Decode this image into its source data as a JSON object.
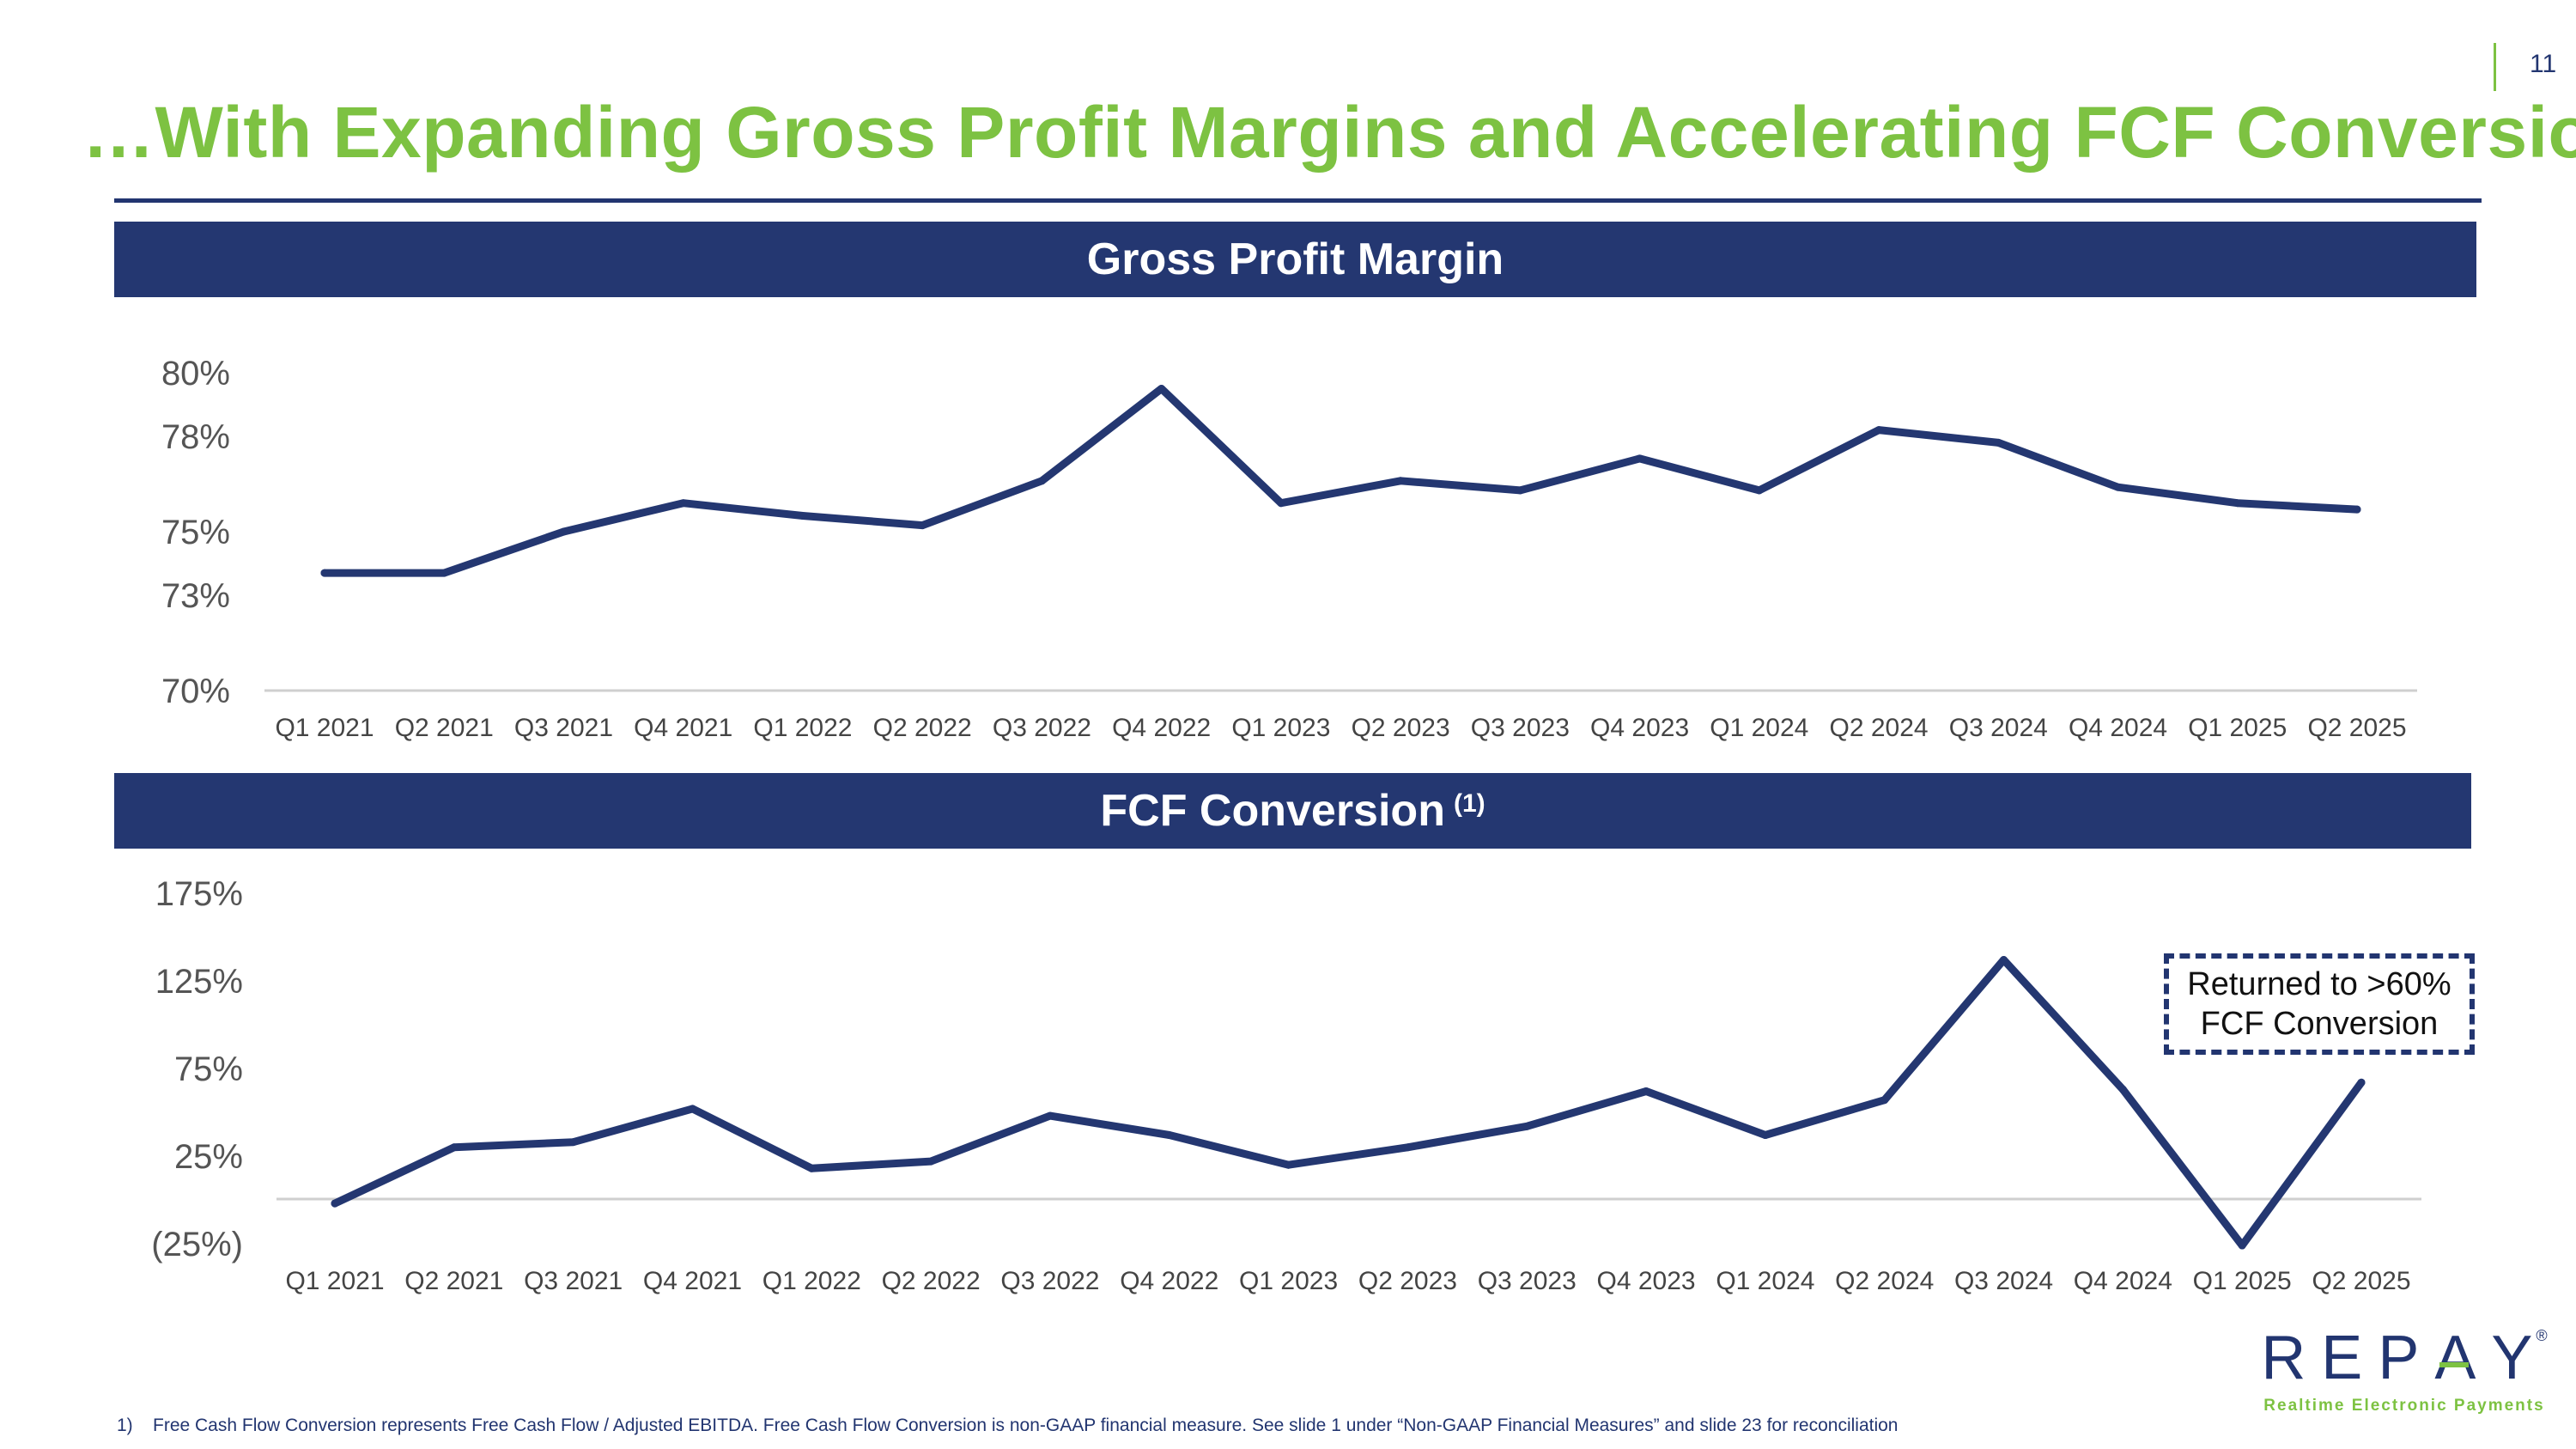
{
  "page_number": "11",
  "title": "…With Expanding Gross Profit Margins and Accelerating FCF Conversion",
  "colors": {
    "title_green": "#7dc242",
    "navy": "#243771",
    "axis_gray": "#cfcfcf"
  },
  "gross_margin_banner": {
    "label": "Gross Profit Margin"
  },
  "fcf_banner": {
    "label": "FCF Conversion",
    "superscript": "(1)"
  },
  "annotation": {
    "line1": "Returned to >60%",
    "line2": "FCF Conversion"
  },
  "logo": {
    "word_pre": "REP",
    "word_a": "A",
    "word_post": "Y",
    "registered": "®",
    "tagline": "Realtime Electronic Payments"
  },
  "footnote": {
    "number": "1)",
    "text": "Free Cash Flow Conversion represents Free Cash Flow / Adjusted EBITDA. Free Cash Flow Conversion is non-GAAP financial measure. See slide 1 under “Non-GAAP Financial Measures” and slide 23 for reconciliation"
  },
  "chart_data": [
    {
      "type": "line",
      "title": "Gross Profit Margin",
      "categories": [
        "Q1 2021",
        "Q2 2021",
        "Q3 2021",
        "Q4 2021",
        "Q1 2022",
        "Q2 2022",
        "Q3 2022",
        "Q4 2022",
        "Q1 2023",
        "Q2 2023",
        "Q3 2023",
        "Q4 2023",
        "Q1 2024",
        "Q2 2024",
        "Q3 2024",
        "Q4 2024",
        "Q1 2025",
        "Q2 2025"
      ],
      "series": [
        {
          "name": "Gross Profit Margin",
          "values": [
            73.7,
            73.7,
            75.0,
            75.9,
            75.5,
            75.2,
            76.6,
            79.5,
            75.9,
            76.6,
            76.3,
            77.3,
            76.3,
            78.2,
            77.8,
            76.4,
            75.9,
            75.7
          ]
        }
      ],
      "ylim": [
        70,
        80
      ],
      "yticks": [
        80,
        78,
        75,
        73,
        70
      ],
      "ytick_labels": [
        "80%",
        "78%",
        "75%",
        "73%",
        "70%"
      ],
      "xlabel": "",
      "ylabel": "",
      "grid": false
    },
    {
      "type": "line",
      "title": "FCF Conversion",
      "categories": [
        "Q1 2021",
        "Q2 2021",
        "Q3 2021",
        "Q4 2021",
        "Q1 2022",
        "Q2 2022",
        "Q3 2022",
        "Q4 2022",
        "Q1 2023",
        "Q2 2023",
        "Q3 2023",
        "Q4 2023",
        "Q1 2024",
        "Q2 2024",
        "Q3 2024",
        "Q4 2024",
        "Q1 2025",
        "Q2 2025"
      ],
      "series": [
        {
          "name": "FCF Conversion",
          "values": [
            -2,
            30,
            33,
            52,
            18,
            22,
            48,
            37,
            20,
            30,
            42,
            62,
            37,
            57,
            137,
            63,
            -26,
            67
          ]
        }
      ],
      "ylim": [
        -25,
        175
      ],
      "yticks": [
        175,
        125,
        75,
        25,
        -25
      ],
      "ytick_labels": [
        "175%",
        "125%",
        "75%",
        "25%",
        "(25%)"
      ],
      "xlabel": "",
      "ylabel": "",
      "grid": false
    }
  ]
}
